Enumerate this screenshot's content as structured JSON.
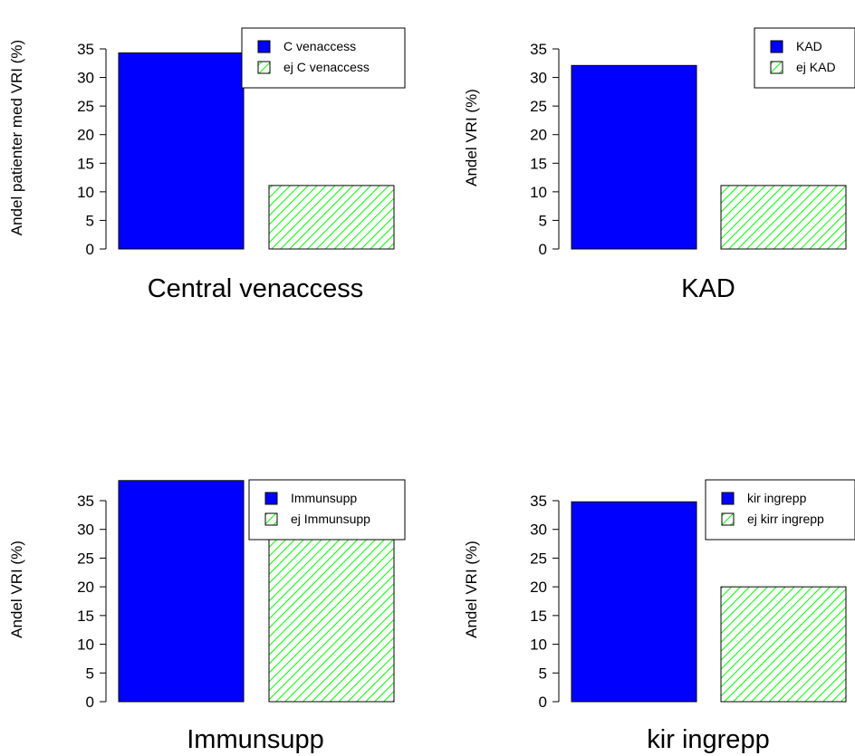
{
  "colors": {
    "series_1": "#0000ff",
    "series_2_hatch": "#00ff00",
    "axis": "#000000"
  },
  "chart_data": [
    {
      "type": "bar",
      "title": "Central venaccess",
      "ylabel": "Andel patienter med VRI (%)",
      "ylim": [
        0,
        35
      ],
      "yticks": [
        0,
        5,
        10,
        15,
        20,
        25,
        30,
        35
      ],
      "grid": false,
      "legend_position": "top-right",
      "series": [
        {
          "name": "C venaccess",
          "value": 34.3,
          "fill": "solid"
        },
        {
          "name": "ej C venaccess",
          "value": 11.1,
          "fill": "hatched"
        }
      ]
    },
    {
      "type": "bar",
      "title": "KAD",
      "ylabel": "Andel VRI (%)",
      "ylim": [
        0,
        35
      ],
      "yticks": [
        0,
        5,
        10,
        15,
        20,
        25,
        30,
        35
      ],
      "grid": false,
      "legend_position": "top-right",
      "series": [
        {
          "name": "KAD",
          "value": 32.1,
          "fill": "solid"
        },
        {
          "name": "ej KAD",
          "value": 11.1,
          "fill": "hatched"
        }
      ]
    },
    {
      "type": "bar",
      "title": "Immunsupp",
      "ylabel": "Andel VRI (%)",
      "ylim": [
        0,
        35
      ],
      "yticks": [
        0,
        5,
        10,
        15,
        20,
        25,
        30,
        35
      ],
      "grid": false,
      "legend_position": "top-right",
      "series": [
        {
          "name": "Immunsupp",
          "value": 38.5,
          "fill": "solid"
        },
        {
          "name": "ej Immunsupp",
          "value": 30.8,
          "fill": "hatched"
        }
      ]
    },
    {
      "type": "bar",
      "title": "kir ingrepp",
      "ylabel": "Andel VRI (%)",
      "ylim": [
        0,
        35
      ],
      "yticks": [
        0,
        5,
        10,
        15,
        20,
        25,
        30,
        35
      ],
      "grid": false,
      "legend_position": "top-right",
      "series": [
        {
          "name": "kir ingrepp",
          "value": 34.8,
          "fill": "solid"
        },
        {
          "name": "ej kirr ingrepp",
          "value": 20.0,
          "fill": "hatched"
        }
      ]
    }
  ]
}
